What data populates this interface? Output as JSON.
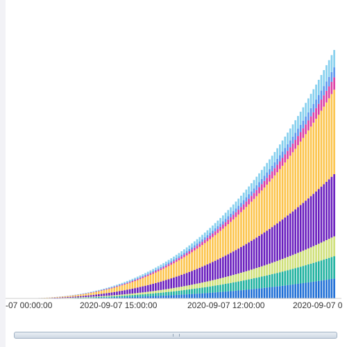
{
  "chart_data": {
    "type": "bar",
    "stacked": true,
    "bar_count": 125,
    "x_tick_labels": [
      "-07 00:00:00",
      "2020-09-07 15:00:00",
      "2020-09-07 12:00:00",
      "2020-09-07 0"
    ],
    "ylim": [
      0,
      100
    ],
    "grid": false,
    "legend": "none",
    "series": [
      {
        "color": "#1f6fd6",
        "end_value": 8
      },
      {
        "color": "#20b2a0",
        "end_value": 9
      },
      {
        "color": "#cfe07a",
        "end_value": 8
      },
      {
        "color": "#6a1fbe",
        "end_value": 25
      },
      {
        "color": "#fcc54e",
        "end_value": 34
      },
      {
        "color": "#dc3fa5",
        "end_value": 5
      },
      {
        "color": "#5d97ee",
        "end_value": 4
      },
      {
        "color": "#86d0ee",
        "end_value": 7
      }
    ],
    "x_scroll": {
      "position": 0,
      "window": 1
    }
  }
}
